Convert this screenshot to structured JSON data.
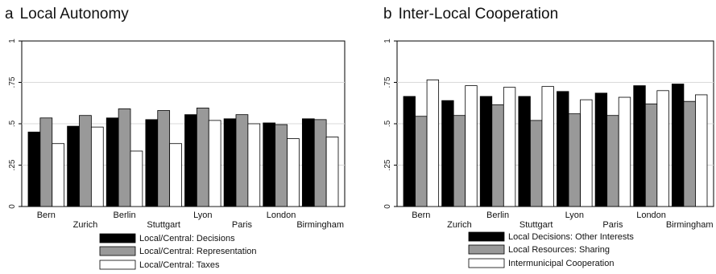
{
  "chart_data": [
    {
      "type": "bar",
      "panel_letter": "a",
      "title": "Local Autonomy",
      "categories": [
        "Bern",
        "Zurich",
        "Berlin",
        "Stuttgart",
        "Lyon",
        "Paris",
        "London",
        "Birmingham"
      ],
      "ytick_labels": [
        "0",
        ".25",
        ".5",
        ".75",
        "1"
      ],
      "yticks": [
        0,
        0.25,
        0.5,
        0.75,
        1
      ],
      "ylim": [
        0,
        1
      ],
      "grid": true,
      "legend_position": "bottom",
      "series": [
        {
          "name": "Local/Central: Decisions",
          "color": "#000000",
          "values": [
            0.45,
            0.485,
            0.535,
            0.525,
            0.555,
            0.53,
            0.505,
            0.53
          ]
        },
        {
          "name": "Local/Central: Representation",
          "color": "#999999",
          "values": [
            0.535,
            0.55,
            0.59,
            0.58,
            0.595,
            0.555,
            0.495,
            0.525
          ]
        },
        {
          "name": "Local/Central: Taxes",
          "color": "#ffffff",
          "values": [
            0.38,
            0.48,
            0.335,
            0.38,
            0.52,
            0.5,
            0.41,
            0.42
          ]
        }
      ]
    },
    {
      "type": "bar",
      "panel_letter": "b",
      "title": "Inter-Local Cooperation",
      "categories": [
        "Bern",
        "Zurich",
        "Berlin",
        "Stuttgart",
        "Lyon",
        "Paris",
        "London",
        "Birmingham"
      ],
      "ytick_labels": [
        "0",
        ".25",
        ".5",
        ".75",
        "1"
      ],
      "yticks": [
        0,
        0.25,
        0.5,
        0.75,
        1
      ],
      "ylim": [
        0,
        1
      ],
      "grid": true,
      "legend_position": "bottom",
      "series": [
        {
          "name": "Local Decisions: Other Interests",
          "color": "#000000",
          "values": [
            0.665,
            0.64,
            0.665,
            0.665,
            0.695,
            0.685,
            0.73,
            0.74
          ]
        },
        {
          "name": "Local Resources: Sharing",
          "color": "#999999",
          "values": [
            0.545,
            0.55,
            0.615,
            0.52,
            0.56,
            0.55,
            0.62,
            0.635
          ]
        },
        {
          "name": "Intermunicipal Cooperation",
          "color": "#ffffff",
          "values": [
            0.765,
            0.73,
            0.72,
            0.725,
            0.645,
            0.66,
            0.7,
            0.675
          ]
        }
      ]
    }
  ]
}
